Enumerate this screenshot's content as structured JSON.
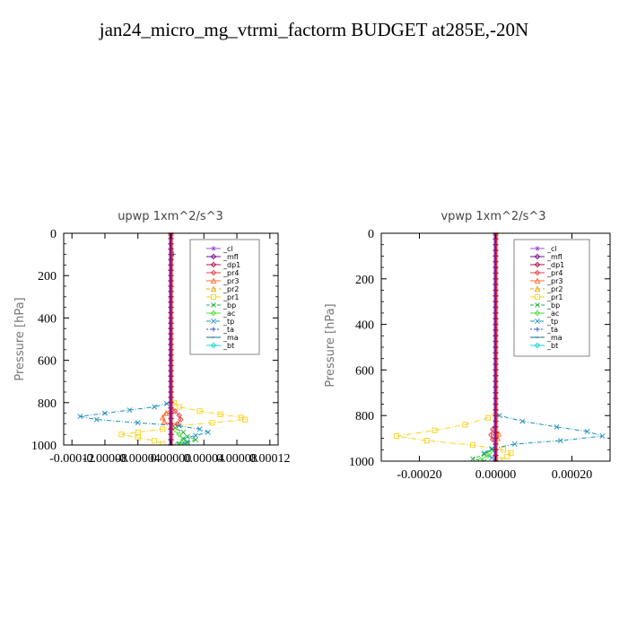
{
  "figure": {
    "title": "jan24_micro_mg_vtrmi_factorm  BUDGET at285E,-20N"
  },
  "colors": {
    "_cl": "#9b4fd6",
    "_mfl": "#6b0f8f",
    "_dp1": "#b0124a",
    "_pr4": "#e0424a",
    "_pr3": "#ff6a2a",
    "_pr2": "#f2a400",
    "_pr1": "#f7d21b",
    "_bp": "#2bb34a",
    "_ac": "#47e03c",
    "_tp": "#1c8fb8",
    "_ta": "#2a50d8",
    "_ma": "#1a6e8a",
    "_bt": "#16d6d6"
  },
  "chart_data": [
    {
      "type": "line",
      "title": "upwp   1xm^2/s^3",
      "ylabel": "Pressure [hPa]",
      "xlim": [
        -0.00013,
        0.00013
      ],
      "ylim": [
        1000,
        0
      ],
      "x_tick_values": [
        -0.00012,
        -8e-05,
        -4e-05,
        0.0,
        4e-05,
        8e-05,
        0.00012
      ],
      "x_tick_labels": [
        "-0.00012",
        "-0.00008",
        "-0.00004",
        "0.00000",
        "0.00004",
        "0.00008",
        "0.00012"
      ],
      "y_tick_values": [
        0,
        200,
        400,
        600,
        800,
        1000
      ],
      "y_tick_labels": [
        "0",
        "200",
        "400",
        "600",
        "800",
        "1000"
      ],
      "legend": [
        "_cl",
        "_mfl",
        "_dp1",
        "_pr4",
        "_pr3",
        "_pr2",
        "_pr1",
        "_bp",
        "_ac",
        "_tp",
        "_ta",
        "_ma",
        "_bt"
      ],
      "legend_position": "top-right",
      "series": [
        {
          "name": "_pr1",
          "points": [
            [
              0,
              0
            ],
            [
              0,
              780
            ],
            [
              4e-06,
              800
            ],
            [
              1e-05,
              820
            ],
            [
              3.5e-05,
              840
            ],
            [
              6e-05,
              855
            ],
            [
              8.5e-05,
              870
            ],
            [
              9e-05,
              880
            ],
            [
              5e-05,
              895
            ],
            [
              5e-06,
              910
            ],
            [
              -1e-05,
              925
            ],
            [
              -4e-05,
              940
            ],
            [
              -6e-05,
              950
            ],
            [
              -4e-05,
              965
            ],
            [
              -2e-05,
              980
            ],
            [
              -1e-05,
              995
            ]
          ]
        },
        {
          "name": "_tp",
          "points": [
            [
              0,
              0
            ],
            [
              0,
              790
            ],
            [
              -5e-06,
              805
            ],
            [
              -2e-05,
              820
            ],
            [
              -5e-05,
              835
            ],
            [
              -8e-05,
              850
            ],
            [
              -0.00011,
              865
            ],
            [
              -9e-05,
              880
            ],
            [
              -4e-05,
              895
            ],
            [
              1e-05,
              910
            ],
            [
              3.5e-05,
              925
            ],
            [
              4.5e-05,
              940
            ],
            [
              3e-05,
              955
            ],
            [
              1.5e-05,
              970
            ],
            [
              2e-05,
              985
            ],
            [
              1e-05,
              995
            ]
          ]
        },
        {
          "name": "_bp",
          "points": [
            [
              0,
              0
            ],
            [
              0,
              900
            ],
            [
              5e-06,
              920
            ],
            [
              1.5e-05,
              940
            ],
            [
              2e-05,
              960
            ],
            [
              3e-05,
              975
            ],
            [
              2e-05,
              990
            ],
            [
              1e-05,
              1000
            ]
          ]
        },
        {
          "name": "_ac",
          "points": [
            [
              0,
              0
            ],
            [
              0,
              920
            ],
            [
              1e-05,
              950
            ],
            [
              1.5e-05,
              975
            ],
            [
              8e-06,
              995
            ]
          ]
        },
        {
          "name": "_pr4",
          "points": [
            [
              0,
              0
            ],
            [
              0,
              820
            ],
            [
              5e-06,
              840
            ],
            [
              1e-05,
              860
            ],
            [
              1.2e-05,
              880
            ],
            [
              8e-06,
              900
            ],
            [
              0,
              915
            ],
            [
              0,
              1000
            ]
          ]
        },
        {
          "name": "_pr3",
          "points": [
            [
              0,
              0
            ],
            [
              0,
              830
            ],
            [
              -6e-06,
              850
            ],
            [
              -1e-05,
              870
            ],
            [
              -8e-06,
              890
            ],
            [
              0,
              905
            ],
            [
              0,
              1000
            ]
          ]
        },
        {
          "name": "_cl",
          "points": [
            [
              0,
              0
            ],
            [
              0,
              1000
            ]
          ]
        },
        {
          "name": "_mfl",
          "points": [
            [
              0,
              0
            ],
            [
              0,
              1000
            ]
          ]
        },
        {
          "name": "_dp1",
          "points": [
            [
              0,
              0
            ],
            [
              0,
              1000
            ]
          ]
        },
        {
          "name": "_ta",
          "points": [
            [
              0,
              0
            ],
            [
              3e-06,
              100
            ],
            [
              0,
              200
            ],
            [
              0,
              1000
            ]
          ]
        }
      ]
    },
    {
      "type": "line",
      "title": "vpwp   1xm^2/s^3",
      "ylabel": "Pressure [hPa]",
      "xlim": [
        -0.0003,
        0.0003
      ],
      "ylim": [
        1000,
        0
      ],
      "x_tick_values": [
        -0.0002,
        0.0,
        0.0002
      ],
      "x_tick_labels": [
        "-0.00020",
        "0.00000",
        "0.00020"
      ],
      "y_tick_values": [
        0,
        200,
        400,
        600,
        800,
        1000
      ],
      "y_tick_labels": [
        "0",
        "200",
        "400",
        "600",
        "800",
        "1000"
      ],
      "legend": [
        "_cl",
        "_mfl",
        "_dp1",
        "_pr4",
        "_pr3",
        "_pr2",
        "_pr1",
        "_bp",
        "_ac",
        "_tp",
        "_ta",
        "_ma",
        "_bt"
      ],
      "legend_position": "top-right",
      "series": [
        {
          "name": "_pr1",
          "points": [
            [
              0,
              0
            ],
            [
              0,
              780
            ],
            [
              -2e-05,
              810
            ],
            [
              -8e-05,
              840
            ],
            [
              -0.00016,
              865
            ],
            [
              -0.00026,
              890
            ],
            [
              -0.00018,
              910
            ],
            [
              -6e-05,
              930
            ],
            [
              2e-05,
              950
            ],
            [
              4e-05,
              965
            ],
            [
              3e-05,
              980
            ],
            [
              1e-05,
              995
            ]
          ]
        },
        {
          "name": "_tp",
          "points": [
            [
              0,
              0
            ],
            [
              0,
              780
            ],
            [
              1e-05,
              800
            ],
            [
              7e-05,
              825
            ],
            [
              0.00016,
              850
            ],
            [
              0.00024,
              870
            ],
            [
              0.00028,
              890
            ],
            [
              0.00017,
              910
            ],
            [
              5e-05,
              925
            ],
            [
              -1e-05,
              945
            ],
            [
              -3e-05,
              965
            ],
            [
              -1e-05,
              985
            ]
          ]
        },
        {
          "name": "_bp",
          "points": [
            [
              0,
              0
            ],
            [
              0,
              930
            ],
            [
              -1e-05,
              950
            ],
            [
              -3e-05,
              970
            ],
            [
              -6e-05,
              990
            ],
            [
              -3e-05,
              1000
            ]
          ]
        },
        {
          "name": "_ac",
          "points": [
            [
              0,
              0
            ],
            [
              0,
              950
            ],
            [
              -2e-05,
              975
            ],
            [
              -4e-05,
              995
            ]
          ]
        },
        {
          "name": "_pr4",
          "points": [
            [
              0,
              0
            ],
            [
              0,
              830
            ],
            [
              -8e-06,
              860
            ],
            [
              -1.2e-05,
              885
            ],
            [
              -8e-06,
              905
            ],
            [
              0,
              925
            ],
            [
              0,
              1000
            ]
          ]
        },
        {
          "name": "_pr3",
          "points": [
            [
              0,
              0
            ],
            [
              0,
              860
            ],
            [
              8e-06,
              880
            ],
            [
              5e-06,
              900
            ],
            [
              0,
              915
            ],
            [
              0,
              1000
            ]
          ]
        },
        {
          "name": "_cl",
          "points": [
            [
              0,
              0
            ],
            [
              0,
              1000
            ]
          ]
        },
        {
          "name": "_mfl",
          "points": [
            [
              0,
              0
            ],
            [
              0,
              1000
            ]
          ]
        },
        {
          "name": "_dp1",
          "points": [
            [
              0,
              0
            ],
            [
              0,
              1000
            ]
          ]
        }
      ]
    }
  ]
}
